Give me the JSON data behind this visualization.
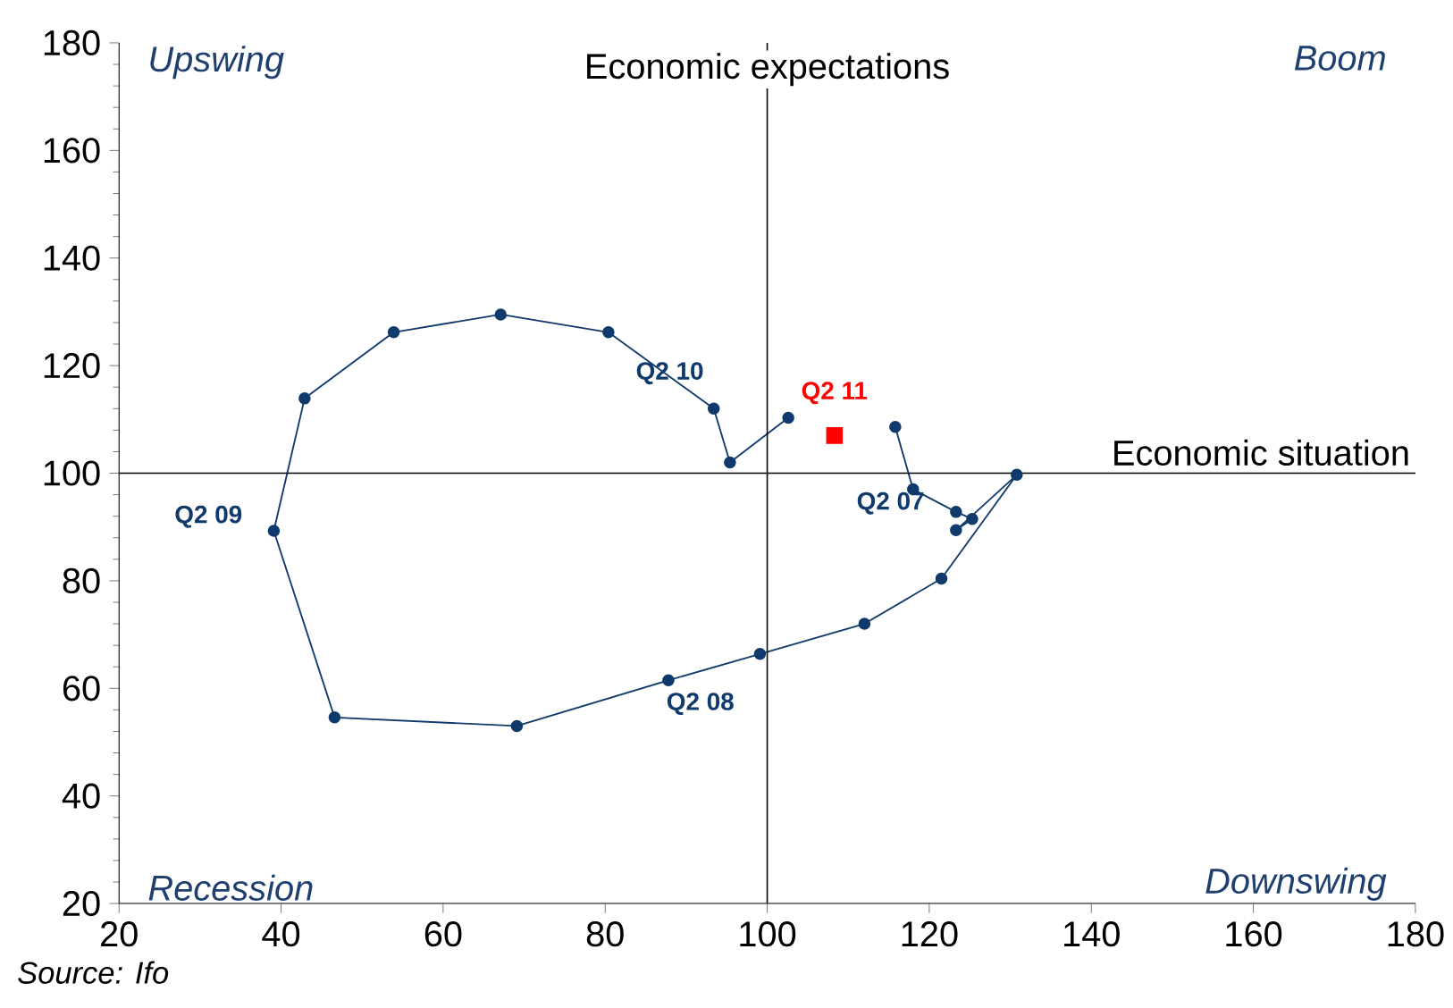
{
  "chart_data": {
    "type": "line",
    "xlim": [
      20,
      180
    ],
    "xticks": [
      20,
      40,
      60,
      80,
      100,
      120,
      140,
      160,
      180
    ],
    "ylim": [
      20,
      180
    ],
    "yticks": [
      20,
      40,
      60,
      80,
      100,
      120,
      140,
      160,
      180
    ],
    "grid": false,
    "series": [
      {
        "color": "#0f3a6b",
        "marker": "circle",
        "x": [
          115.8,
          118,
          123.3,
          125.3,
          123.3,
          130.8,
          121.5,
          112,
          99.1,
          87.8,
          69.1,
          46.6,
          39.1,
          42.9,
          53.9,
          67.1,
          80.4,
          93.4,
          95.4,
          102.6
        ],
        "values": [
          108.6,
          97,
          92.8,
          91.5,
          89.4,
          99.7,
          80.4,
          72,
          66.4,
          61.5,
          53,
          54.6,
          89.3,
          113.9,
          126.2,
          129.5,
          126.2,
          112,
          102,
          110.3
        ]
      },
      {
        "type": "scatter",
        "color": "#ff0000",
        "marker": "square",
        "x": [
          108.3
        ],
        "values": [
          107
        ]
      }
    ],
    "ref_lines": [
      {
        "axis": "x",
        "value": 100,
        "label": "Economic expectations"
      },
      {
        "axis": "y",
        "value": 100,
        "label": "Economic situation"
      }
    ],
    "annotations": [
      "Upswing",
      "Boom",
      "Recession",
      "Downswing",
      {
        "text": "Q2 10",
        "x": 93.4,
        "y": 112
      },
      {
        "text": "Q2 11",
        "x": 108.3,
        "y": 107
      },
      {
        "text": "Q2 07",
        "x": 118,
        "y": 97
      },
      {
        "text": "Q2 08",
        "x": 87.8,
        "y": 61.5
      },
      {
        "text": "Q2 09",
        "x": 39.1,
        "y": 89.3
      },
      "Source: Ifo"
    ]
  }
}
